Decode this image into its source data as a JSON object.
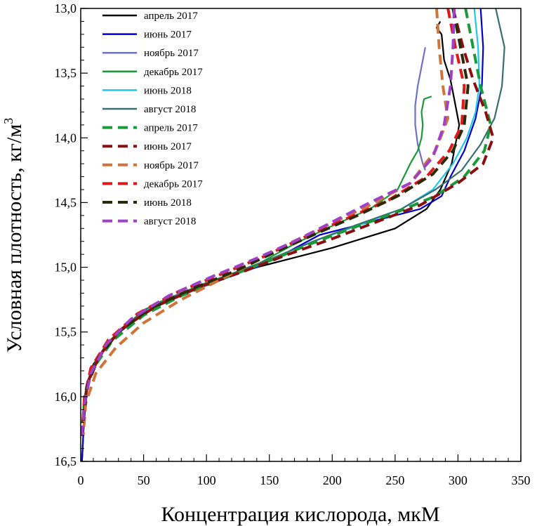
{
  "chart_data": {
    "type": "line",
    "xlabel": "Концентрация кислорода, мкМ",
    "ylabel_main": "Условная плотность, кг/м",
    "ylabel_sup": "3",
    "xlim": [
      0,
      350
    ],
    "ylim": [
      13.0,
      16.5
    ],
    "y_inverted": true,
    "x_ticks": [
      0,
      50,
      100,
      150,
      200,
      250,
      300,
      350
    ],
    "x_tick_labels": [
      "0",
      "50",
      "100",
      "150",
      "200",
      "250",
      "300",
      "350"
    ],
    "y_ticks": [
      13.0,
      13.5,
      14.0,
      14.5,
      15.0,
      15.5,
      16.0,
      16.5
    ],
    "y_tick_labels": [
      "13,0",
      "13,5",
      "14,0",
      "14,5",
      "15,0",
      "15,5",
      "16,0",
      "16,5"
    ],
    "grid": false,
    "legend_position": "top-left",
    "series": [
      {
        "name": "апрель 2017",
        "color": "#000000",
        "dashed": false,
        "points": [
          [
            286,
            13.1
          ],
          [
            283,
            13.15
          ],
          [
            287,
            13.2
          ],
          [
            289,
            13.4
          ],
          [
            294,
            13.55
          ],
          [
            297,
            13.7
          ],
          [
            301,
            13.9
          ],
          [
            295,
            14.2
          ],
          [
            286,
            14.4
          ],
          [
            275,
            14.55
          ],
          [
            250,
            14.7
          ],
          [
            200,
            14.85
          ],
          [
            160,
            14.95
          ],
          [
            120,
            15.05
          ],
          [
            80,
            15.2
          ],
          [
            50,
            15.35
          ],
          [
            25,
            15.55
          ],
          [
            10,
            15.75
          ],
          [
            4,
            16.0
          ],
          [
            2,
            16.3
          ],
          [
            1,
            16.5
          ]
        ]
      },
      {
        "name": "июнь 2017",
        "color": "#0000d0",
        "dashed": false,
        "points": [
          [
            318,
            13.0
          ],
          [
            320,
            13.3
          ],
          [
            319,
            13.6
          ],
          [
            314,
            13.85
          ],
          [
            305,
            14.1
          ],
          [
            294,
            14.3
          ],
          [
            287,
            14.45
          ],
          [
            270,
            14.55
          ],
          [
            230,
            14.65
          ],
          [
            190,
            14.75
          ],
          [
            165,
            14.88
          ],
          [
            140,
            15.0
          ],
          [
            100,
            15.12
          ],
          [
            60,
            15.28
          ],
          [
            35,
            15.45
          ],
          [
            20,
            15.6
          ],
          [
            8,
            15.8
          ],
          [
            3,
            16.0
          ],
          [
            2,
            16.3
          ],
          [
            1,
            16.5
          ]
        ]
      },
      {
        "name": "ноябрь 2017",
        "color": "#7070c8",
        "dashed": false,
        "points": [
          [
            274,
            13.3
          ],
          [
            271,
            13.45
          ],
          [
            268,
            13.6
          ],
          [
            266,
            13.75
          ],
          [
            266,
            13.9
          ],
          [
            268,
            14.05
          ],
          [
            272,
            14.2
          ],
          [
            274,
            14.25
          ]
        ]
      },
      {
        "name": "декабрь 2017",
        "color": "#1a9a3a",
        "dashed": false,
        "points": [
          [
            279,
            13.68
          ],
          [
            273,
            13.7
          ],
          [
            271,
            13.8
          ],
          [
            272,
            13.9
          ],
          [
            271,
            14.0
          ],
          [
            268,
            14.1
          ],
          [
            262,
            14.2
          ],
          [
            252,
            14.4
          ],
          [
            230,
            14.55
          ],
          [
            200,
            14.68
          ],
          [
            170,
            14.82
          ],
          [
            140,
            14.98
          ],
          [
            100,
            15.12
          ],
          [
            60,
            15.28
          ],
          [
            35,
            15.45
          ],
          [
            20,
            15.6
          ],
          [
            8,
            15.8
          ],
          [
            3,
            16.0
          ],
          [
            1,
            16.2
          ]
        ]
      },
      {
        "name": "июнь 2018",
        "color": "#20c8e8",
        "dashed": false,
        "points": [
          [
            313,
            13.0
          ],
          [
            316,
            13.3
          ],
          [
            317,
            13.6
          ],
          [
            314,
            13.8
          ],
          [
            307,
            14.0
          ],
          [
            296,
            14.2
          ],
          [
            280,
            14.4
          ],
          [
            255,
            14.55
          ],
          [
            220,
            14.68
          ],
          [
            185,
            14.8
          ],
          [
            155,
            14.92
          ],
          [
            125,
            15.05
          ],
          [
            90,
            15.18
          ],
          [
            55,
            15.32
          ],
          [
            30,
            15.5
          ],
          [
            15,
            15.68
          ],
          [
            5,
            15.9
          ],
          [
            2,
            16.2
          ]
        ]
      },
      {
        "name": "август 2018",
        "color": "#3a6e6e",
        "dashed": false,
        "points": [
          [
            330,
            13.0
          ],
          [
            337,
            13.3
          ],
          [
            335,
            13.6
          ],
          [
            329,
            13.85
          ],
          [
            318,
            14.05
          ],
          [
            303,
            14.25
          ],
          [
            282,
            14.4
          ],
          [
            255,
            14.55
          ],
          [
            220,
            14.67
          ],
          [
            185,
            14.8
          ],
          [
            155,
            14.92
          ],
          [
            120,
            15.05
          ],
          [
            85,
            15.18
          ],
          [
            50,
            15.33
          ],
          [
            28,
            15.52
          ],
          [
            12,
            15.72
          ],
          [
            4,
            15.95
          ],
          [
            2,
            16.2
          ]
        ]
      },
      {
        "name": "апрель 2017",
        "color": "#1a9a3a",
        "dashed": true,
        "points": [
          [
            306,
            13.0
          ],
          [
            312,
            13.3
          ],
          [
            318,
            13.6
          ],
          [
            326,
            13.9
          ],
          [
            321,
            14.1
          ],
          [
            305,
            14.3
          ],
          [
            282,
            14.45
          ],
          [
            250,
            14.58
          ],
          [
            215,
            14.7
          ],
          [
            180,
            14.83
          ],
          [
            150,
            14.95
          ],
          [
            115,
            15.08
          ],
          [
            80,
            15.22
          ],
          [
            50,
            15.37
          ],
          [
            25,
            15.57
          ],
          [
            10,
            15.78
          ],
          [
            3,
            16.0
          ],
          [
            1,
            16.3
          ]
        ]
      },
      {
        "name": "июнь 2017",
        "color": "#8a1010",
        "dashed": true,
        "points": [
          [
            296,
            13.0
          ],
          [
            304,
            13.3
          ],
          [
            312,
            13.55
          ],
          [
            322,
            13.8
          ],
          [
            328,
            14.0
          ],
          [
            320,
            14.2
          ],
          [
            300,
            14.35
          ],
          [
            270,
            14.52
          ],
          [
            235,
            14.65
          ],
          [
            200,
            14.78
          ],
          [
            165,
            14.9
          ],
          [
            130,
            15.03
          ],
          [
            95,
            15.15
          ],
          [
            60,
            15.3
          ],
          [
            32,
            15.48
          ],
          [
            15,
            15.68
          ],
          [
            5,
            15.9
          ],
          [
            2,
            16.2
          ]
        ]
      },
      {
        "name": "ноябрь 2017",
        "color": "#d0743c",
        "dashed": true,
        "points": [
          [
            283,
            13.0
          ],
          [
            285,
            13.3
          ],
          [
            288,
            13.6
          ],
          [
            292,
            13.85
          ],
          [
            282,
            14.1
          ],
          [
            262,
            14.35
          ],
          [
            230,
            14.52
          ],
          [
            195,
            14.68
          ],
          [
            165,
            14.82
          ],
          [
            140,
            14.95
          ],
          [
            110,
            15.1
          ],
          [
            80,
            15.25
          ],
          [
            50,
            15.43
          ],
          [
            28,
            15.62
          ],
          [
            12,
            15.82
          ],
          [
            4,
            16.05
          ],
          [
            2,
            16.3
          ]
        ]
      },
      {
        "name": "декабрь 2017",
        "color": "#e01818",
        "dashed": true,
        "points": [
          [
            292,
            13.0
          ],
          [
            298,
            13.3
          ],
          [
            305,
            13.6
          ],
          [
            303,
            13.9
          ],
          [
            293,
            14.1
          ],
          [
            275,
            14.3
          ],
          [
            245,
            14.48
          ],
          [
            210,
            14.63
          ],
          [
            175,
            14.78
          ],
          [
            145,
            14.92
          ],
          [
            110,
            15.06
          ],
          [
            75,
            15.2
          ],
          [
            45,
            15.36
          ],
          [
            22,
            15.56
          ],
          [
            8,
            15.78
          ],
          [
            3,
            16.0
          ],
          [
            1,
            16.3
          ]
        ]
      },
      {
        "name": "июнь 2018",
        "color": "#2a2a08",
        "dashed": true,
        "points": [
          [
            296,
            13.0
          ],
          [
            302,
            13.3
          ],
          [
            308,
            13.6
          ],
          [
            305,
            13.9
          ],
          [
            296,
            14.1
          ],
          [
            280,
            14.28
          ],
          [
            252,
            14.45
          ],
          [
            220,
            14.6
          ],
          [
            185,
            14.75
          ],
          [
            155,
            14.88
          ],
          [
            125,
            15.02
          ],
          [
            90,
            15.16
          ],
          [
            55,
            15.32
          ],
          [
            30,
            15.5
          ],
          [
            14,
            15.7
          ],
          [
            5,
            15.92
          ],
          [
            2,
            16.2
          ]
        ]
      },
      {
        "name": "август 2018",
        "color": "#a040c8",
        "dashed": true,
        "points": [
          [
            297,
            13.0
          ],
          [
            296,
            13.3
          ],
          [
            294,
            13.6
          ],
          [
            289,
            13.9
          ],
          [
            280,
            14.15
          ],
          [
            262,
            14.35
          ],
          [
            230,
            14.5
          ],
          [
            200,
            14.65
          ],
          [
            170,
            14.8
          ],
          [
            140,
            14.93
          ],
          [
            105,
            15.07
          ],
          [
            70,
            15.22
          ],
          [
            40,
            15.4
          ],
          [
            20,
            15.6
          ],
          [
            8,
            15.82
          ],
          [
            3,
            16.05
          ],
          [
            1,
            16.3
          ]
        ]
      }
    ]
  }
}
